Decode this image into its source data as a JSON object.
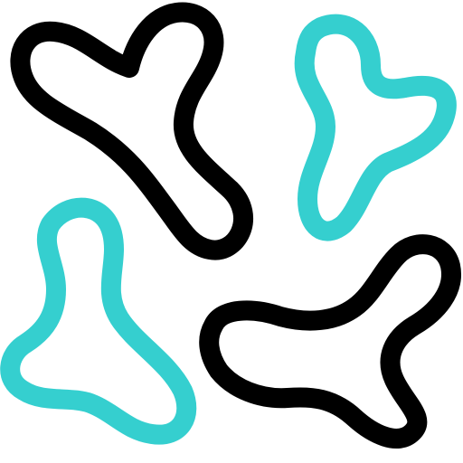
{
  "icon": {
    "name": "bacteria-blobs-icon",
    "colors": {
      "dark": "#000000",
      "accent": "#35CFCF",
      "background": "#FFFFFF"
    },
    "shapes": [
      {
        "name": "blob-top-left-icon",
        "color_key": "dark"
      },
      {
        "name": "blob-top-right-icon",
        "color_key": "accent"
      },
      {
        "name": "blob-bottom-left-icon",
        "color_key": "accent"
      },
      {
        "name": "blob-bottom-right-icon",
        "color_key": "dark"
      }
    ]
  }
}
